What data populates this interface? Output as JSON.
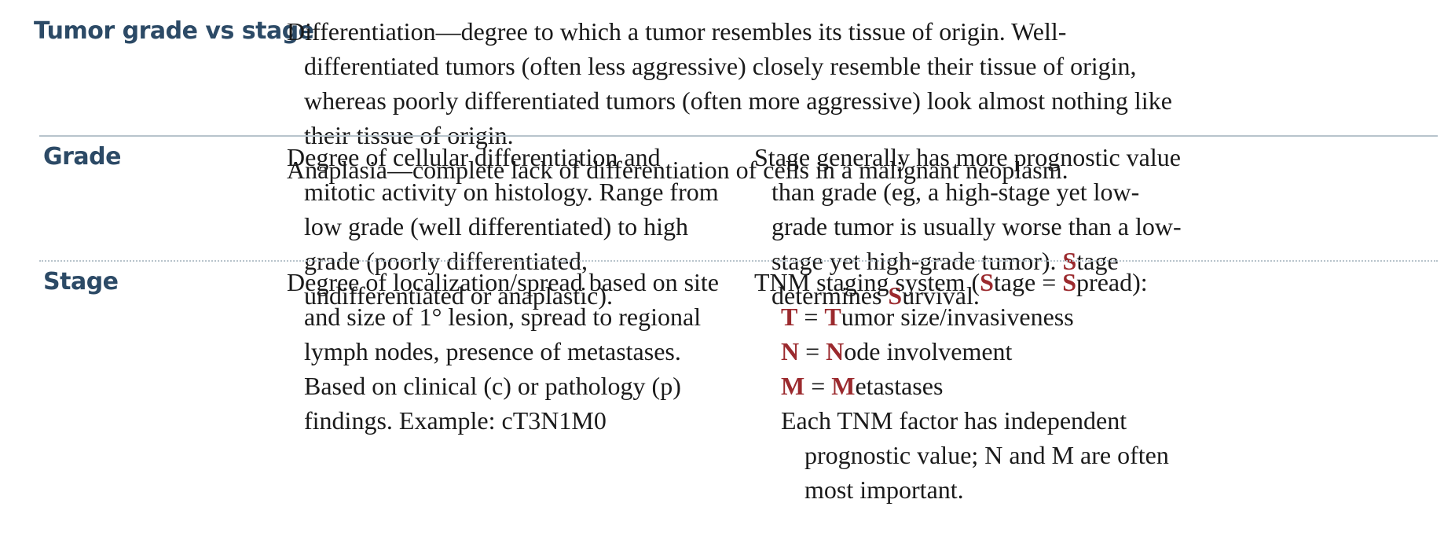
{
  "top": {
    "heading": "Tumor grade vs stage",
    "differentiation": "Differentiation—degree to which a tumor resembles its tissue of origin. Well-differentiated tumors (often less aggressive) closely resemble their tissue of origin, whereas poorly differentiated tumors (often more aggressive) look almost nothing like their tissue of origin.",
    "anaplasia": "Anaplasia—complete lack of differentiation of cells in a malignant neoplasm."
  },
  "grade": {
    "heading": "Grade",
    "description": "Degree of cellular differentiation and mitotic activity on histology. Range from low grade (well differentiated) to high grade (poorly differentiated, undifferentiated or anaplastic).",
    "note_main": "Stage generally has more prognostic value than grade (eg, a high-stage yet low-grade tumor is usually worse than a low-stage yet high-grade tumor).",
    "mnemonic_s1": "S",
    "mnemonic_w1": "tage determines ",
    "mnemonic_s2": "S",
    "mnemonic_w2": "urvival."
  },
  "stage": {
    "heading": "Stage",
    "description": "Degree of localization/spread based on site and size of 1° lesion, spread to regional lymph nodes, presence of metastases. Based on clinical (c) or pathology (p) findings. Example: cT3N1M0",
    "tnm_intro_a": "TNM staging system (",
    "tnm_intro_s1": "S",
    "tnm_intro_b": "tage = ",
    "tnm_intro_s2": "S",
    "tnm_intro_c": "pread):",
    "tnm": [
      {
        "letter": "T",
        "eq": " = ",
        "first": "T",
        "rest": "umor size/invasiveness"
      },
      {
        "letter": "N",
        "eq": " = ",
        "first": "N",
        "rest": "ode involvement"
      },
      {
        "letter": "M",
        "eq": " = ",
        "first": "M",
        "rest": "etastases"
      }
    ],
    "factor_note": "Each TNM factor has independent prognostic value; N and M are often most important."
  },
  "colors": {
    "heading": "#2c4a66",
    "mnemonic_red": "#9b2a2e",
    "rule": "#b8c4cc"
  }
}
